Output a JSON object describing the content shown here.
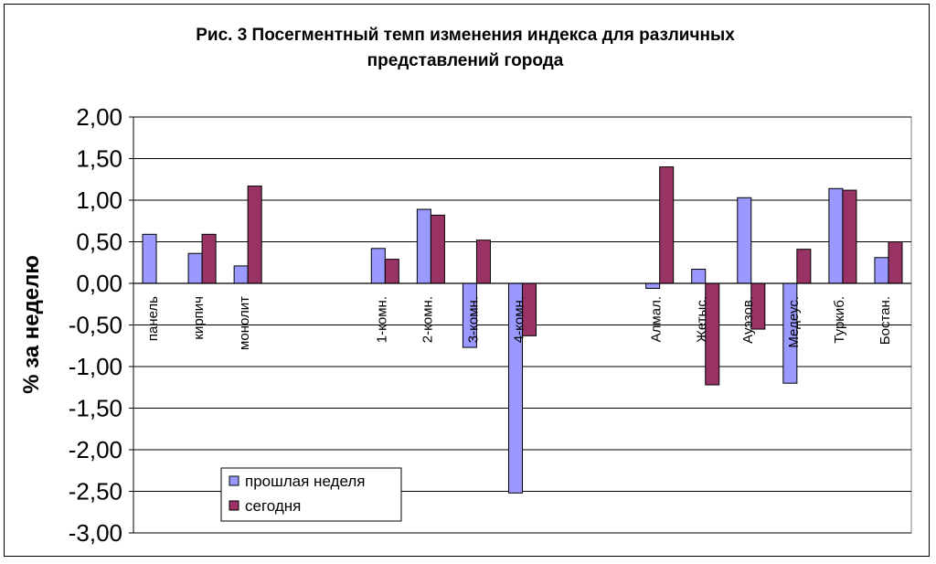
{
  "chart_data": {
    "type": "bar",
    "title_lines": [
      "Рис. 3 Посегментный темп изменения индекса для различных",
      "представлений города"
    ],
    "ylabel": "% за неделю",
    "ylim": [
      -3.0,
      2.0
    ],
    "y_ticks": [
      "2,00",
      "1,50",
      "1,00",
      "0,50",
      "0,00",
      "-0,50",
      "-1,00",
      "-1,50",
      "-2,00",
      "-2,50",
      "-3,00"
    ],
    "grid": true,
    "legend_position": "bottom-left",
    "categories": [
      "панель",
      "кирпич",
      "монолит",
      "",
      "",
      "1-комн.",
      "2-комн.",
      "3-комн.",
      "4-комн.",
      "",
      "",
      "Алмал.",
      "Жетыс.",
      "Ауэзов.",
      "Медеус.",
      "Туркиб.",
      "Бостан."
    ],
    "series": [
      {
        "name": "прошлая неделя",
        "color": "#9999ff",
        "values": [
          0.59,
          0.36,
          0.21,
          null,
          null,
          0.42,
          0.89,
          -0.77,
          -2.52,
          null,
          null,
          -0.06,
          0.17,
          1.03,
          -1.2,
          1.14,
          0.31
        ]
      },
      {
        "name": "сегодня",
        "color": "#993366",
        "values": [
          null,
          0.59,
          1.17,
          null,
          null,
          0.29,
          0.82,
          0.52,
          -0.63,
          null,
          null,
          1.4,
          -1.22,
          -0.55,
          0.41,
          1.12,
          0.5
        ]
      }
    ]
  }
}
